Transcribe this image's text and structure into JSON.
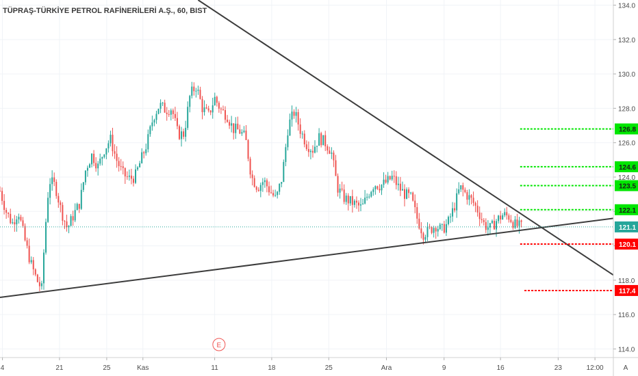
{
  "title": "TÜPRAŞ-TÜRKİYE PETROL RAFİNERİLERİ A.Ş., 60, BIST",
  "colors": {
    "up": "#26a69a",
    "down": "#ef5350",
    "trend": "#3c3c3c",
    "green_level": "#00e600",
    "red_level": "#ff0000",
    "current": "#26a69a",
    "axis_text": "#4a4a4a"
  },
  "earnings_marker": "E",
  "axis_corner_label": "A",
  "chart_data": {
    "type": "candlestick",
    "title": "TÜPRAŞ-TÜRKİYE PETROL RAFİNERİLERİ A.Ş., 60, BIST",
    "ylim": [
      113.5,
      134.3
    ],
    "xlim": [
      0,
      100
    ],
    "y_ticks": [
      114.0,
      116.0,
      118.0,
      120.0,
      122.0,
      124.0,
      126.0,
      128.0,
      130.0,
      132.0,
      134.0
    ],
    "y_tick_labels": [
      "114.0",
      "116.0",
      "118.0",
      "120.0",
      "122.0",
      "124.0",
      "126.0",
      "128.0",
      "130.0",
      "132.0",
      "134.0"
    ],
    "x_ticks": [
      0.4,
      9.7,
      17.4,
      23.3,
      35.0,
      44.3,
      53.6,
      63.0,
      72.4,
      81.6,
      91.0,
      97.0
    ],
    "x_tick_labels": [
      "4",
      "21",
      "25",
      "Kas",
      "11",
      "18",
      "25",
      "Ara",
      "9",
      "16",
      "23",
      "12:00"
    ],
    "close_path": [
      [
        0.0,
        123.2
      ],
      [
        1.0,
        122.0
      ],
      [
        2.0,
        121.3
      ],
      [
        3.0,
        122.0
      ],
      [
        4.0,
        120.4
      ],
      [
        5.0,
        119.0
      ],
      [
        6.0,
        118.0
      ],
      [
        6.8,
        117.5
      ],
      [
        7.3,
        120.6
      ],
      [
        8.0,
        123.8
      ],
      [
        9.0,
        123.5
      ],
      [
        10.0,
        122.0
      ],
      [
        11.0,
        121.0
      ],
      [
        12.0,
        121.8
      ],
      [
        13.0,
        122.5
      ],
      [
        14.0,
        124.5
      ],
      [
        15.0,
        125.3
      ],
      [
        16.0,
        124.6
      ],
      [
        17.0,
        125.6
      ],
      [
        18.0,
        126.2
      ],
      [
        19.0,
        125.0
      ],
      [
        20.0,
        124.2
      ],
      [
        21.0,
        123.9
      ],
      [
        22.0,
        124.0
      ],
      [
        23.0,
        125.0
      ],
      [
        24.0,
        126.0
      ],
      [
        25.0,
        127.5
      ],
      [
        26.0,
        128.2
      ],
      [
        27.0,
        127.9
      ],
      [
        28.0,
        128.0
      ],
      [
        29.0,
        126.5
      ],
      [
        30.0,
        126.5
      ],
      [
        31.0,
        128.8
      ],
      [
        32.0,
        129.3
      ],
      [
        33.0,
        128.0
      ],
      [
        34.0,
        127.6
      ],
      [
        35.0,
        128.6
      ],
      [
        36.0,
        127.9
      ],
      [
        37.0,
        127.6
      ],
      [
        38.0,
        126.8
      ],
      [
        39.0,
        126.7
      ],
      [
        40.0,
        126.3
      ],
      [
        41.0,
        124.0
      ],
      [
        42.0,
        123.4
      ],
      [
        43.0,
        123.8
      ],
      [
        44.0,
        123.2
      ],
      [
        45.0,
        122.7
      ],
      [
        46.0,
        124.0
      ],
      [
        47.0,
        127.0
      ],
      [
        48.0,
        127.8
      ],
      [
        49.0,
        126.7
      ],
      [
        50.0,
        125.9
      ],
      [
        51.0,
        125.6
      ],
      [
        52.0,
        126.3
      ],
      [
        53.0,
        126.0
      ],
      [
        54.0,
        125.5
      ],
      [
        55.0,
        123.4
      ],
      [
        56.0,
        122.8
      ],
      [
        57.0,
        122.6
      ],
      [
        58.0,
        122.4
      ],
      [
        59.0,
        122.2
      ],
      [
        60.0,
        123.0
      ],
      [
        61.0,
        123.6
      ],
      [
        62.0,
        123.5
      ],
      [
        63.0,
        123.7
      ],
      [
        64.0,
        124.0
      ],
      [
        65.0,
        123.4
      ],
      [
        66.0,
        123.0
      ],
      [
        67.0,
        122.8
      ],
      [
        68.0,
        121.6
      ],
      [
        69.0,
        120.7
      ],
      [
        70.0,
        120.9
      ],
      [
        71.0,
        121.2
      ],
      [
        72.0,
        120.9
      ],
      [
        73.0,
        121.3
      ],
      [
        74.0,
        122.2
      ],
      [
        75.0,
        123.4
      ],
      [
        76.0,
        123.0
      ],
      [
        77.0,
        122.6
      ],
      [
        78.0,
        122.0
      ],
      [
        79.0,
        121.2
      ],
      [
        80.0,
        121.0
      ],
      [
        81.0,
        121.5
      ],
      [
        82.0,
        121.8
      ],
      [
        83.0,
        121.7
      ],
      [
        84.0,
        121.2
      ],
      [
        85.0,
        121.1
      ]
    ],
    "trendlines": [
      {
        "name": "resistance",
        "from": [
          32.3,
          134.3
        ],
        "to": [
          100.0,
          118.3
        ]
      },
      {
        "name": "support",
        "from": [
          0.0,
          117.0
        ],
        "to": [
          100.0,
          121.6
        ]
      }
    ],
    "levels": [
      {
        "value": 126.8,
        "label": "126.8",
        "color": "green",
        "x_start": 84.8
      },
      {
        "value": 124.6,
        "label": "124.6",
        "color": "green",
        "x_start": 84.8
      },
      {
        "value": 123.5,
        "label": "123.5",
        "color": "green",
        "x_start": 84.8
      },
      {
        "value": 122.1,
        "label": "122.1",
        "color": "green",
        "x_start": 84.8
      },
      {
        "value": 120.1,
        "label": "120.1",
        "color": "red",
        "x_start": 84.8
      },
      {
        "value": 117.4,
        "label": "117.4",
        "color": "red",
        "x_start": 85.5
      }
    ],
    "current_price": {
      "value": 121.1,
      "label": "121.1"
    },
    "earnings_x": 35.7
  }
}
